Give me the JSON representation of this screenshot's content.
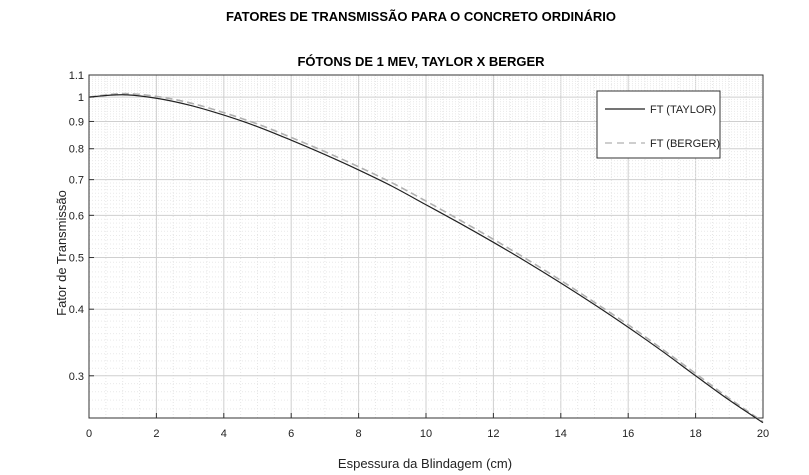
{
  "chart_data": {
    "type": "line",
    "title": "FATORES DE TRANSMISSÃO PARA O CONCRETO ORDINÁRIO",
    "subtitle": "FÓTONS DE 1 MEV, TAYLOR X BERGER",
    "xlabel": "Espessura da Blindagem (cm)",
    "ylabel": "Fator de Transmissão",
    "xlim": [
      0,
      20
    ],
    "ylim": [
      0.25,
      1.1
    ],
    "yscale": "log",
    "grid": true,
    "legend_position": "top-right",
    "x_ticks": [
      "0",
      "2",
      "4",
      "6",
      "8",
      "10",
      "12",
      "14",
      "16",
      "18",
      "20"
    ],
    "y_ticks": [
      "0.3",
      "0.4",
      "0.5",
      "0.6",
      "0.7",
      "0.8",
      "0.9",
      "1",
      "1.1"
    ],
    "x": [
      0,
      1,
      2,
      3,
      4,
      5,
      6,
      7,
      8,
      9,
      10,
      11,
      12,
      13,
      14,
      15,
      16,
      17,
      18,
      19,
      20
    ],
    "series": [
      {
        "name": "FT (TAYLOR)",
        "style": "solid",
        "color": "#222222",
        "values": [
          1.0,
          1.01,
          0.995,
          0.965,
          0.925,
          0.88,
          0.83,
          0.78,
          0.73,
          0.68,
          0.628,
          0.58,
          0.534,
          0.49,
          0.448,
          0.408,
          0.37,
          0.334,
          0.3,
          0.27,
          0.245
        ]
      },
      {
        "name": "FT (BERGER)",
        "style": "dashed",
        "color": "#b0b0b0",
        "values": [
          1.0,
          1.015,
          1.003,
          0.975,
          0.935,
          0.89,
          0.84,
          0.79,
          0.74,
          0.69,
          0.638,
          0.588,
          0.541,
          0.496,
          0.453,
          0.412,
          0.374,
          0.337,
          0.303,
          0.272,
          0.246
        ]
      }
    ]
  }
}
